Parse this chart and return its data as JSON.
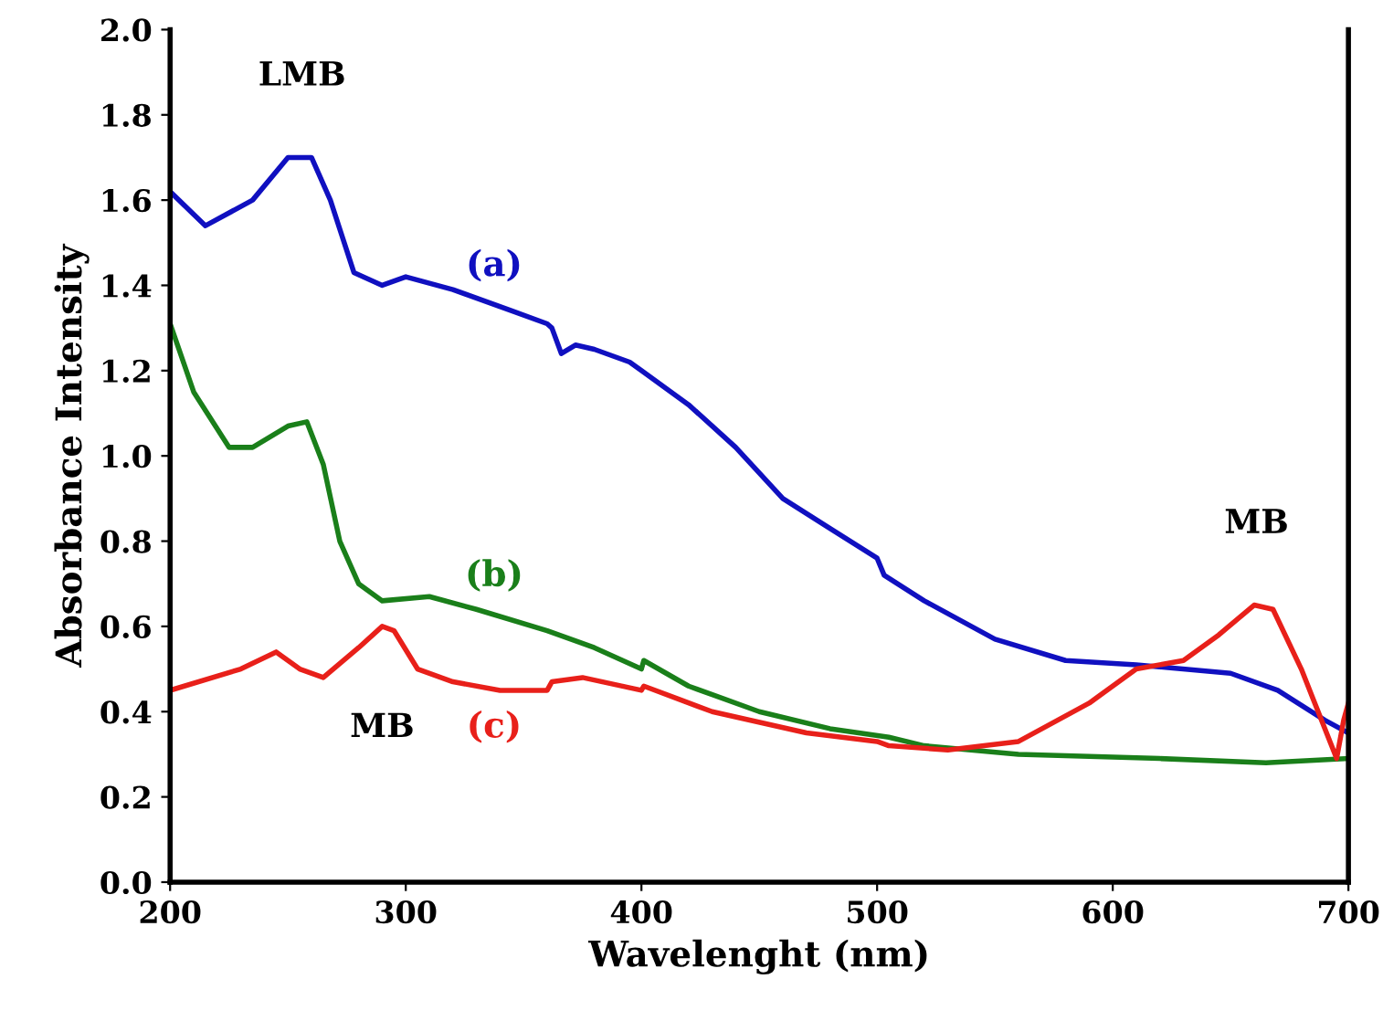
{
  "chart_data": {
    "type": "line",
    "xlabel": "Wavelenght (nm)",
    "ylabel": "Absorbance Intensity",
    "xlim": [
      200,
      700
    ],
    "xticks": [
      200,
      300,
      400,
      500,
      600,
      700
    ],
    "ylim": [
      0,
      2
    ],
    "yticks": [
      {
        "value": 0,
        "label": "0.0"
      },
      {
        "value": 0.2,
        "label": "0.2"
      },
      {
        "value": 0.4,
        "label": "0.4"
      },
      {
        "value": 0.6,
        "label": "0.6"
      },
      {
        "value": 0.8,
        "label": "0.8"
      },
      {
        "value": 1.0,
        "label": "1.0"
      },
      {
        "value": 1.2,
        "label": "1.2"
      },
      {
        "value": 1.4,
        "label": "1.4"
      },
      {
        "value": 1.6,
        "label": "1.6"
      },
      {
        "value": 1.8,
        "label": "1.8"
      },
      {
        "value": 2.0,
        "label": "2.0"
      }
    ],
    "grid": false,
    "legend": false,
    "marker": "none",
    "line_style": "solid",
    "series": [
      {
        "name": "(a)",
        "color": "#1010c0",
        "x": [
          200,
          215,
          235,
          250,
          260,
          268,
          278,
          290,
          300,
          320,
          345,
          360,
          362,
          366,
          372,
          380,
          395,
          400,
          420,
          440,
          460,
          480,
          500,
          503,
          520,
          550,
          580,
          610,
          650,
          670,
          690,
          700
        ],
        "values": [
          1.62,
          1.54,
          1.6,
          1.7,
          1.7,
          1.6,
          1.43,
          1.4,
          1.42,
          1.39,
          1.34,
          1.31,
          1.3,
          1.24,
          1.26,
          1.25,
          1.22,
          1.2,
          1.12,
          1.02,
          0.9,
          0.83,
          0.76,
          0.72,
          0.66,
          0.57,
          0.52,
          0.51,
          0.49,
          0.45,
          0.38,
          0.35
        ]
      },
      {
        "name": "(b)",
        "color": "#1a7f1a",
        "x": [
          200,
          210,
          225,
          235,
          250,
          258,
          265,
          272,
          280,
          290,
          310,
          330,
          360,
          380,
          400,
          401,
          420,
          450,
          480,
          505,
          520,
          560,
          620,
          665,
          700
        ],
        "values": [
          1.31,
          1.15,
          1.02,
          1.02,
          1.07,
          1.08,
          0.98,
          0.8,
          0.7,
          0.66,
          0.67,
          0.64,
          0.59,
          0.55,
          0.5,
          0.52,
          0.46,
          0.4,
          0.36,
          0.34,
          0.32,
          0.3,
          0.29,
          0.28,
          0.29
        ]
      },
      {
        "name": "(c)",
        "color": "#e8201a",
        "x": [
          200,
          230,
          245,
          255,
          265,
          280,
          290,
          295,
          305,
          320,
          340,
          360,
          362,
          375,
          400,
          401,
          430,
          470,
          500,
          505,
          530,
          560,
          590,
          610,
          630,
          645,
          660,
          668,
          680,
          695,
          698,
          700
        ],
        "values": [
          0.45,
          0.5,
          0.54,
          0.5,
          0.48,
          0.55,
          0.6,
          0.59,
          0.5,
          0.47,
          0.45,
          0.45,
          0.47,
          0.48,
          0.45,
          0.46,
          0.4,
          0.35,
          0.33,
          0.32,
          0.31,
          0.33,
          0.42,
          0.5,
          0.52,
          0.58,
          0.65,
          0.64,
          0.5,
          0.29,
          0.38,
          0.42
        ]
      }
    ],
    "annotations": [
      {
        "text": "LMB",
        "x": 256,
        "y": 1.7
      },
      {
        "text": "MB",
        "x": 290,
        "y": 0.6
      },
      {
        "text": "MB",
        "x": 661,
        "y": 0.65
      }
    ]
  }
}
